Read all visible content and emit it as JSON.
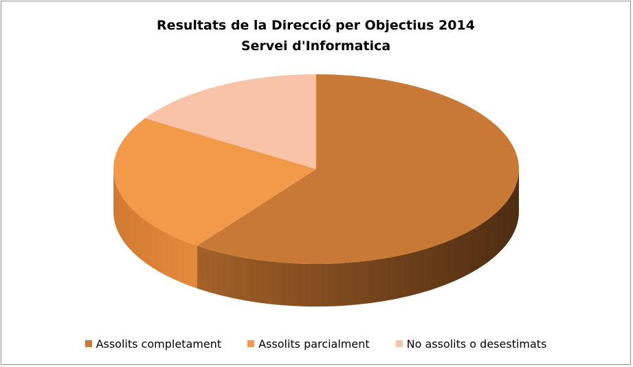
{
  "chart_data": {
    "type": "pie",
    "title": "Resultats de la Direcció per Objectius 2014",
    "subtitle": "Servei d'Informatica",
    "categories": [
      "Assolits completament",
      "Assolits parcialment",
      "No assolits o desestimats"
    ],
    "values": [
      60,
      24,
      16
    ],
    "colors": [
      "#c97936",
      "#f39a4a",
      "#f8c3a6"
    ],
    "legend_position": "bottom",
    "style": "3d"
  }
}
